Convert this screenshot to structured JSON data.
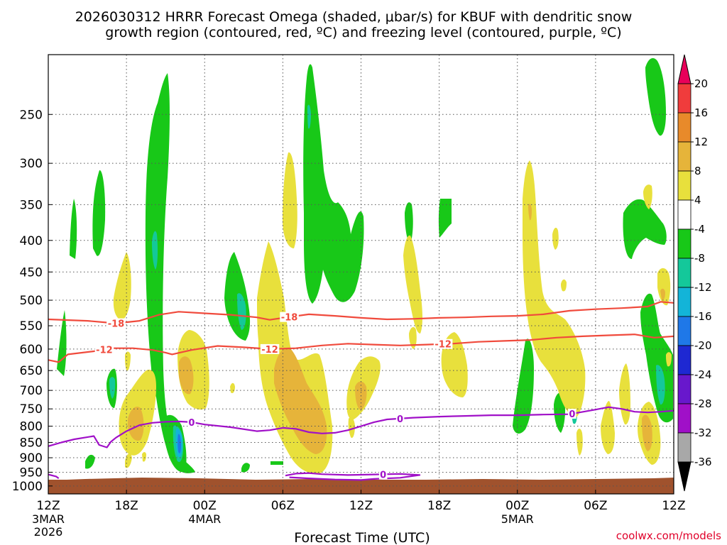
{
  "chart_data": {
    "type": "time-height cross-section",
    "title_line1": "2026030312 HRRR Forecast Omega (shaded, μbar/s) for KBUF with dendritic snow",
    "title_line2": "growth region (contoured, red, ºC) and freezing level (contoured, purple, ºC)",
    "xlabel": "Forecast Time (UTC)",
    "credit": "coolwx.com/models",
    "y_axis": {
      "units": "hPa",
      "range": [
        1030,
        200
      ],
      "ticks": [
        250,
        300,
        350,
        400,
        450,
        500,
        550,
        600,
        650,
        700,
        750,
        800,
        850,
        900,
        950,
        1000
      ]
    },
    "x_axis": {
      "range_hours": [
        0,
        48
      ],
      "ticks": [
        {
          "hour": 0,
          "label": "12Z",
          "sub1": "3MAR",
          "sub2": "2026"
        },
        {
          "hour": 6,
          "label": "18Z",
          "sub1": "",
          "sub2": ""
        },
        {
          "hour": 12,
          "label": "00Z",
          "sub1": "4MAR",
          "sub2": ""
        },
        {
          "hour": 18,
          "label": "06Z",
          "sub1": "",
          "sub2": ""
        },
        {
          "hour": 24,
          "label": "12Z",
          "sub1": "",
          "sub2": ""
        },
        {
          "hour": 30,
          "label": "18Z",
          "sub1": "",
          "sub2": ""
        },
        {
          "hour": 36,
          "label": "00Z",
          "sub1": "5MAR",
          "sub2": ""
        },
        {
          "hour": 42,
          "label": "06Z",
          "sub1": "",
          "sub2": ""
        },
        {
          "hour": 48,
          "label": "12Z",
          "sub1": "",
          "sub2": ""
        }
      ]
    },
    "colorbar": {
      "levels": [
        "20",
        "16",
        "12",
        "8",
        "4",
        "-4",
        "-8",
        "-12",
        "-16",
        "-20",
        "-24",
        "-28",
        "-32",
        "-36"
      ],
      "colors": [
        "#e8005a",
        "#f03c3c",
        "#e88a2a",
        "#e6b43a",
        "#e8e03c",
        "#ffffff",
        "#18c818",
        "#14c89a",
        "#13b4d8",
        "#1f78e8",
        "#1e28d2",
        "#6818cc",
        "#a010c8",
        "#a8a8a8",
        "#000000"
      ]
    },
    "contours": [
      {
        "name": "dgz-minus18",
        "label": "-18",
        "color": "#f04a3c",
        "points": [
          [
            0,
            537
          ],
          [
            3,
            540
          ],
          [
            5.2,
            545
          ],
          [
            7,
            540
          ],
          [
            8.5,
            528
          ],
          [
            10,
            522
          ],
          [
            12,
            525
          ],
          [
            14,
            528
          ],
          [
            16,
            533
          ],
          [
            17,
            538
          ],
          [
            18,
            534
          ],
          [
            20,
            527
          ],
          [
            22,
            530
          ],
          [
            24,
            534
          ],
          [
            26,
            537
          ],
          [
            28,
            536
          ],
          [
            30,
            534
          ],
          [
            32,
            533
          ],
          [
            34,
            531
          ],
          [
            36,
            530
          ],
          [
            38,
            527
          ],
          [
            40,
            520
          ],
          [
            42,
            517
          ],
          [
            44,
            515
          ],
          [
            46,
            512
          ],
          [
            47,
            503
          ],
          [
            48,
            505
          ]
        ]
      },
      {
        "name": "dgz-minus12",
        "label": "-12",
        "color": "#f04a3c",
        "points": [
          [
            0,
            625
          ],
          [
            0.8,
            630
          ],
          [
            1.5,
            612
          ],
          [
            3.5,
            605
          ],
          [
            5,
            598
          ],
          [
            6.5,
            598
          ],
          [
            8,
            602
          ],
          [
            9,
            608
          ],
          [
            9.5,
            612
          ],
          [
            11,
            602
          ],
          [
            13,
            593
          ],
          [
            15,
            596
          ],
          [
            17,
            600
          ],
          [
            19,
            598
          ],
          [
            21,
            592
          ],
          [
            23,
            588
          ],
          [
            25,
            590
          ],
          [
            27,
            592
          ],
          [
            29,
            590
          ],
          [
            31,
            588
          ],
          [
            33,
            584
          ],
          [
            35,
            582
          ],
          [
            37,
            580
          ],
          [
            39,
            575
          ],
          [
            41,
            572
          ],
          [
            43,
            570
          ],
          [
            45,
            568
          ],
          [
            46.5,
            575
          ],
          [
            48,
            572
          ]
        ]
      },
      {
        "name": "freezing-level-upper",
        "label": "0",
        "color": "#a010c8",
        "points": [
          [
            0,
            862
          ],
          [
            1,
            850
          ],
          [
            2,
            840
          ],
          [
            3.5,
            830
          ],
          [
            3.9,
            858
          ],
          [
            4.5,
            866
          ],
          [
            4.8,
            848
          ],
          [
            5.2,
            835
          ],
          [
            6,
            815
          ],
          [
            7,
            797
          ],
          [
            8,
            790
          ],
          [
            9,
            787
          ],
          [
            10,
            786
          ],
          [
            11,
            788
          ],
          [
            12,
            795
          ],
          [
            14,
            803
          ],
          [
            16,
            815
          ],
          [
            17,
            812
          ],
          [
            18,
            805
          ],
          [
            19,
            808
          ],
          [
            20,
            818
          ],
          [
            21,
            822
          ],
          [
            22,
            820
          ],
          [
            23,
            812
          ],
          [
            24,
            800
          ],
          [
            25,
            788
          ],
          [
            26,
            780
          ],
          [
            28,
            775
          ],
          [
            30,
            772
          ],
          [
            32,
            770
          ],
          [
            34,
            768
          ],
          [
            36,
            768
          ],
          [
            38,
            766
          ],
          [
            40,
            765
          ],
          [
            42,
            752
          ],
          [
            43,
            745
          ],
          [
            44,
            750
          ],
          [
            45,
            758
          ],
          [
            46,
            760
          ],
          [
            47,
            758
          ],
          [
            48,
            755
          ]
        ]
      },
      {
        "name": "freezing-level-lower",
        "label": "0",
        "color": "#a010c8",
        "points": [
          [
            18.2,
            962
          ],
          [
            19,
            955
          ],
          [
            20,
            953
          ],
          [
            21,
            957
          ],
          [
            23,
            960
          ],
          [
            25,
            958
          ],
          [
            27,
            956
          ],
          [
            28.5,
            960
          ],
          [
            27,
            970
          ],
          [
            25,
            974
          ],
          [
            24,
            978
          ],
          [
            22,
            976
          ],
          [
            20,
            972
          ],
          [
            18.5,
            968
          ]
        ]
      },
      {
        "name": "freezing-level-surface",
        "label": "",
        "color": "#a010c8",
        "points": [
          [
            0,
            958
          ],
          [
            0.6,
            965
          ],
          [
            0.8,
            972
          ]
        ]
      }
    ]
  }
}
